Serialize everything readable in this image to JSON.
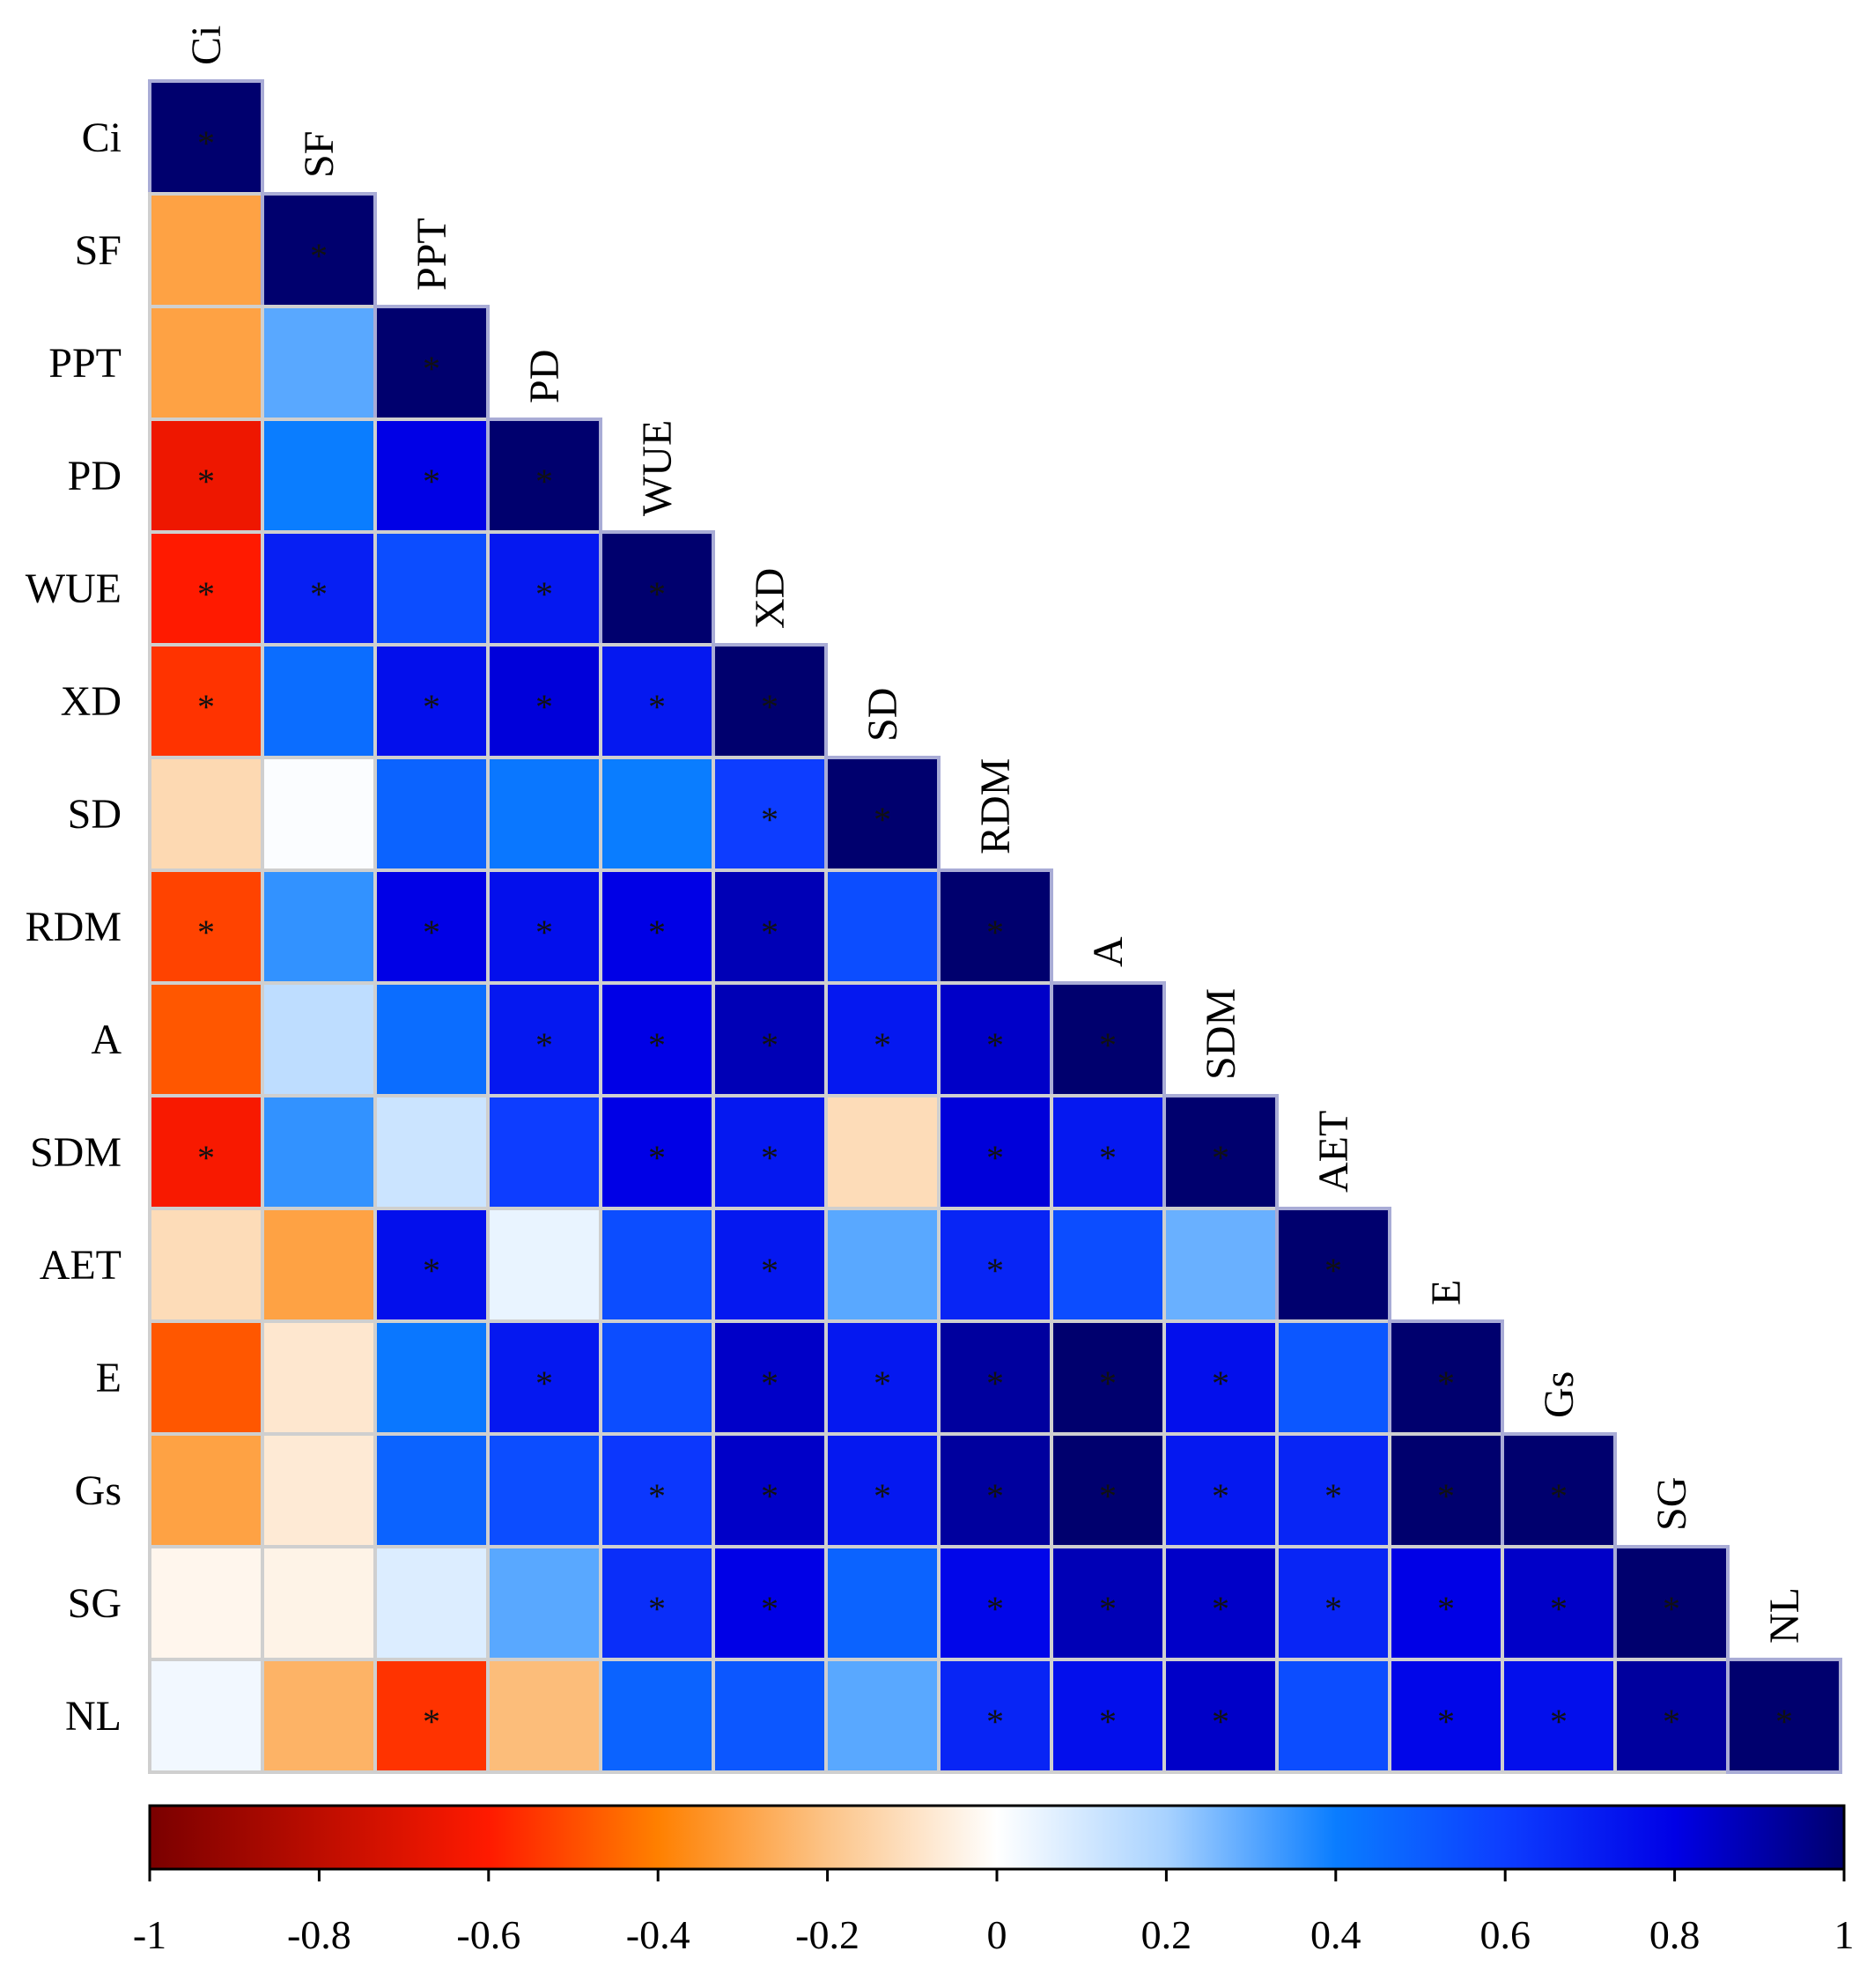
{
  "chart_data": {
    "type": "heatmap",
    "title": "",
    "variables": [
      "Ci",
      "SF",
      "PPT",
      "PD",
      "WUE",
      "XD",
      "SD",
      "RDM",
      "A",
      "SDM",
      "AET",
      "E",
      "Gs",
      "SG",
      "NL"
    ],
    "matrix_lower": [
      [
        1
      ],
      [
        -0.3,
        1
      ],
      [
        -0.3,
        0.3,
        1
      ],
      [
        -0.65,
        0.4,
        0.8,
        1
      ],
      [
        -0.6,
        0.7,
        0.55,
        0.72,
        1
      ],
      [
        -0.55,
        0.45,
        0.75,
        0.82,
        0.72,
        1
      ],
      [
        -0.13,
        0.01,
        0.48,
        0.42,
        0.4,
        0.6,
        1
      ],
      [
        -0.52,
        0.35,
        0.8,
        0.75,
        0.8,
        0.88,
        0.55,
        1
      ],
      [
        -0.48,
        0.15,
        0.45,
        0.72,
        0.8,
        0.88,
        0.72,
        0.85,
        1
      ],
      [
        -0.62,
        0.35,
        0.12,
        0.6,
        0.8,
        0.72,
        -0.12,
        0.82,
        0.72,
        1
      ],
      [
        -0.12,
        -0.3,
        0.75,
        0.05,
        0.55,
        0.72,
        0.3,
        0.68,
        0.55,
        0.28,
        1
      ],
      [
        -0.48,
        -0.08,
        0.42,
        0.72,
        0.55,
        0.85,
        0.72,
        0.92,
        1.0,
        0.75,
        0.52,
        1
      ],
      [
        -0.3,
        -0.07,
        0.48,
        0.55,
        0.62,
        0.85,
        0.72,
        0.92,
        1.0,
        0.72,
        0.68,
        1.0,
        1
      ],
      [
        -0.03,
        -0.04,
        0.08,
        0.3,
        0.65,
        0.8,
        0.48,
        0.78,
        0.88,
        0.85,
        0.68,
        0.8,
        0.85,
        1
      ],
      [
        0.03,
        -0.25,
        -0.55,
        -0.22,
        0.48,
        0.52,
        0.3,
        0.68,
        0.75,
        0.85,
        0.55,
        0.78,
        0.75,
        0.92,
        1
      ]
    ],
    "significant_lower": [
      [
        1
      ],
      [
        0,
        1
      ],
      [
        0,
        0,
        1
      ],
      [
        1,
        0,
        1,
        1
      ],
      [
        1,
        1,
        0,
        1,
        1
      ],
      [
        1,
        0,
        1,
        1,
        1,
        1
      ],
      [
        0,
        0,
        0,
        0,
        0,
        1,
        1
      ],
      [
        1,
        0,
        1,
        1,
        1,
        1,
        0,
        1
      ],
      [
        0,
        0,
        0,
        1,
        1,
        1,
        1,
        1,
        1
      ],
      [
        1,
        0,
        0,
        0,
        1,
        1,
        0,
        1,
        1,
        1
      ],
      [
        0,
        0,
        1,
        0,
        0,
        1,
        0,
        1,
        0,
        0,
        1
      ],
      [
        0,
        0,
        0,
        1,
        0,
        1,
        1,
        1,
        1,
        1,
        0,
        1
      ],
      [
        0,
        0,
        0,
        0,
        1,
        1,
        1,
        1,
        1,
        1,
        1,
        1,
        1
      ],
      [
        0,
        0,
        0,
        0,
        1,
        1,
        0,
        1,
        1,
        1,
        1,
        1,
        1,
        1
      ],
      [
        0,
        0,
        1,
        0,
        0,
        0,
        0,
        1,
        1,
        1,
        0,
        1,
        1,
        1,
        1
      ]
    ],
    "significance_marker": "*",
    "colorbar": {
      "range": [
        -1,
        1
      ],
      "ticks": [
        -1,
        -0.8,
        -0.6,
        -0.4,
        -0.2,
        0,
        0.2,
        0.4,
        0.6,
        0.8,
        1
      ],
      "tick_labels": [
        "-1",
        "-0.8",
        "-0.6",
        "-0.4",
        "-0.2",
        "0",
        "0.2",
        "0.4",
        "0.6",
        "0.8",
        "1"
      ],
      "stops": [
        {
          "value": -1,
          "color": "#7a0000"
        },
        {
          "value": -0.6,
          "color": "#ff1a00"
        },
        {
          "value": -0.4,
          "color": "#ff8000"
        },
        {
          "value": -0.2,
          "color": "#fcc488"
        },
        {
          "value": 0,
          "color": "#ffffff"
        },
        {
          "value": 0.2,
          "color": "#a8d2ff"
        },
        {
          "value": 0.4,
          "color": "#0a7dff"
        },
        {
          "value": 0.6,
          "color": "#0d3dff"
        },
        {
          "value": 0.8,
          "color": "#0000e6"
        },
        {
          "value": 1,
          "color": "#00006e"
        }
      ]
    }
  }
}
